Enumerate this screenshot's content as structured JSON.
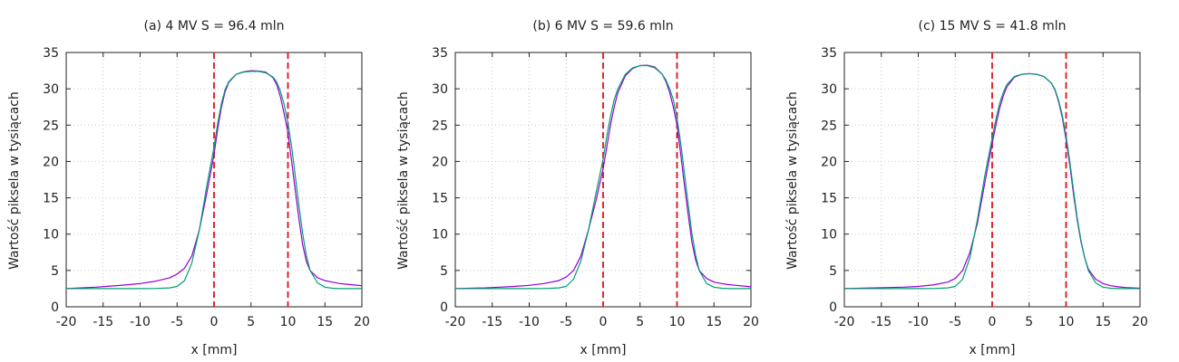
{
  "chart_data": [
    {
      "type": "line",
      "title": "(a) 4 MV S = 96.4 mln",
      "xlabel": "x [mm]",
      "ylabel": "Wartość piksela w tysiącach",
      "xlim": [
        -20,
        20
      ],
      "ylim": [
        0,
        35
      ],
      "xticks": [
        -20,
        -15,
        -10,
        -5,
        0,
        5,
        10,
        15,
        20
      ],
      "yticks": [
        0,
        5,
        10,
        15,
        20,
        25,
        30,
        35
      ],
      "grid": true,
      "vlines": [
        0,
        10
      ],
      "series": [
        {
          "color": "#9400d3",
          "x": [
            -20,
            -18,
            -16,
            -14,
            -12,
            -10,
            -8,
            -6,
            -5,
            -4,
            -3,
            -2,
            -1,
            0,
            0.5,
            1,
            1.5,
            2,
            3,
            4,
            5,
            6,
            7,
            8,
            8.5,
            9,
            9.5,
            10,
            10.5,
            11,
            11.5,
            12,
            12.5,
            13,
            14,
            15,
            16,
            17,
            18,
            19,
            20
          ],
          "y": [
            2.5,
            2.6,
            2.7,
            2.85,
            3.0,
            3.2,
            3.5,
            4.0,
            4.5,
            5.3,
            7.0,
            10.5,
            15.5,
            21.0,
            24.5,
            27.5,
            29.6,
            30.9,
            32.0,
            32.35,
            32.5,
            32.45,
            32.3,
            31.5,
            30.5,
            28.8,
            26.5,
            24.0,
            20.0,
            16.0,
            12.0,
            8.5,
            6.2,
            5.0,
            4.0,
            3.6,
            3.4,
            3.2,
            3.1,
            3.0,
            2.9
          ]
        },
        {
          "color": "#009e73",
          "x": [
            -20,
            -15,
            -10,
            -8,
            -6,
            -5,
            -4,
            -3,
            -2,
            -1,
            0,
            0.5,
            1,
            1.5,
            2,
            3,
            4,
            5,
            6,
            7,
            8,
            8.5,
            9,
            9.5,
            10,
            10.5,
            11,
            11.5,
            12,
            12.5,
            13,
            14,
            15,
            16,
            17,
            18,
            20
          ],
          "y": [
            2.5,
            2.5,
            2.5,
            2.52,
            2.6,
            2.8,
            3.6,
            6.0,
            10.5,
            16.5,
            22.0,
            25.3,
            28.0,
            29.9,
            31.0,
            32.0,
            32.3,
            32.4,
            32.4,
            32.2,
            31.6,
            30.9,
            29.6,
            27.8,
            25.3,
            22.0,
            18.0,
            13.8,
            10.0,
            7.0,
            5.0,
            3.3,
            2.7,
            2.55,
            2.5,
            2.5,
            2.5
          ]
        }
      ]
    },
    {
      "type": "line",
      "title": "(b) 6 MV S = 59.6 mln",
      "xlabel": "x [mm]",
      "ylabel": "Wartość piksela w tysiącach",
      "xlim": [
        -20,
        20
      ],
      "ylim": [
        0,
        35
      ],
      "xticks": [
        -20,
        -15,
        -10,
        -5,
        0,
        5,
        10,
        15,
        20
      ],
      "yticks": [
        0,
        5,
        10,
        15,
        20,
        25,
        30,
        35
      ],
      "grid": true,
      "vlines": [
        0,
        10
      ],
      "series": [
        {
          "color": "#9400d3",
          "x": [
            -20,
            -18,
            -16,
            -14,
            -12,
            -10,
            -8,
            -6,
            -5,
            -4,
            -3,
            -2,
            -1,
            0,
            0.5,
            1,
            1.5,
            2,
            3,
            4,
            5,
            6,
            7,
            8,
            8.5,
            9,
            9.5,
            10,
            10.5,
            11,
            11.5,
            12,
            12.5,
            13,
            14,
            15,
            16,
            17,
            18,
            19,
            20
          ],
          "y": [
            2.5,
            2.55,
            2.6,
            2.7,
            2.8,
            2.95,
            3.2,
            3.6,
            4.1,
            5.0,
            7.0,
            10.5,
            14.5,
            19.0,
            22.0,
            25.0,
            27.5,
            29.5,
            31.8,
            32.8,
            33.2,
            33.25,
            33.0,
            32.0,
            31.0,
            29.5,
            27.5,
            25.0,
            21.0,
            16.8,
            12.8,
            9.0,
            6.5,
            5.0,
            3.9,
            3.4,
            3.2,
            3.05,
            2.95,
            2.85,
            2.75
          ]
        },
        {
          "color": "#009e73",
          "x": [
            -20,
            -15,
            -10,
            -8,
            -6,
            -5,
            -4,
            -3,
            -2,
            -1,
            0,
            0.5,
            1,
            1.5,
            2,
            3,
            4,
            5,
            6,
            7,
            8,
            8.5,
            9,
            9.5,
            10,
            10.5,
            11,
            11.5,
            12,
            12.5,
            13,
            14,
            15,
            16,
            17,
            18,
            20
          ],
          "y": [
            2.5,
            2.5,
            2.5,
            2.52,
            2.6,
            2.8,
            3.8,
            6.3,
            10.5,
            15.5,
            20.3,
            23.5,
            26.2,
            28.5,
            30.0,
            32.0,
            32.9,
            33.2,
            33.2,
            32.9,
            32.0,
            31.2,
            30.0,
            28.5,
            26.0,
            22.5,
            18.5,
            14.2,
            10.2,
            7.2,
            5.0,
            3.2,
            2.7,
            2.55,
            2.5,
            2.5,
            2.5
          ]
        }
      ]
    },
    {
      "type": "line",
      "title": "(c) 15 MV S = 41.8 mln",
      "xlabel": "x [mm]",
      "ylabel": "Wartość piksela w tysiącach",
      "xlim": [
        -20,
        20
      ],
      "ylim": [
        0,
        35
      ],
      "xticks": [
        -20,
        -15,
        -10,
        -5,
        0,
        5,
        10,
        15,
        20
      ],
      "yticks": [
        0,
        5,
        10,
        15,
        20,
        25,
        30,
        35
      ],
      "grid": true,
      "vlines": [
        0,
        10
      ],
      "series": [
        {
          "color": "#9400d3",
          "x": [
            -20,
            -18,
            -16,
            -14,
            -12,
            -10,
            -8,
            -6,
            -5,
            -4,
            -3,
            -2,
            -1,
            0,
            0.5,
            1,
            1.5,
            2,
            3,
            4,
            5,
            6,
            7,
            8,
            8.5,
            9,
            9.5,
            10,
            10.5,
            11,
            11.5,
            12,
            12.5,
            13,
            14,
            15,
            16,
            17,
            18,
            19,
            20
          ],
          "y": [
            2.5,
            2.55,
            2.6,
            2.65,
            2.7,
            2.8,
            3.0,
            3.4,
            3.9,
            5.0,
            7.5,
            11.5,
            17.0,
            22.5,
            25.0,
            27.3,
            29.0,
            30.3,
            31.6,
            32.0,
            32.1,
            32.0,
            31.7,
            30.8,
            29.8,
            28.2,
            26.0,
            23.0,
            19.5,
            15.5,
            12.0,
            9.0,
            6.8,
            5.2,
            3.8,
            3.2,
            2.9,
            2.75,
            2.65,
            2.6,
            2.55
          ]
        },
        {
          "color": "#009e73",
          "x": [
            -20,
            -15,
            -10,
            -8,
            -6,
            -5,
            -4,
            -3,
            -2,
            -1,
            0,
            0.5,
            1,
            1.5,
            2,
            3,
            4,
            5,
            6,
            7,
            8,
            8.5,
            9,
            9.5,
            10,
            10.5,
            11,
            11.5,
            12,
            12.5,
            13,
            14,
            15,
            16,
            17,
            18,
            20
          ],
          "y": [
            2.5,
            2.5,
            2.5,
            2.52,
            2.6,
            2.8,
            3.8,
            6.8,
            12.0,
            18.0,
            23.2,
            25.8,
            28.0,
            29.5,
            30.6,
            31.7,
            32.0,
            32.1,
            32.0,
            31.7,
            30.8,
            29.9,
            28.4,
            26.3,
            23.5,
            20.0,
            16.0,
            12.3,
            9.2,
            6.8,
            5.0,
            3.3,
            2.7,
            2.55,
            2.5,
            2.5,
            2.5
          ]
        }
      ]
    }
  ]
}
